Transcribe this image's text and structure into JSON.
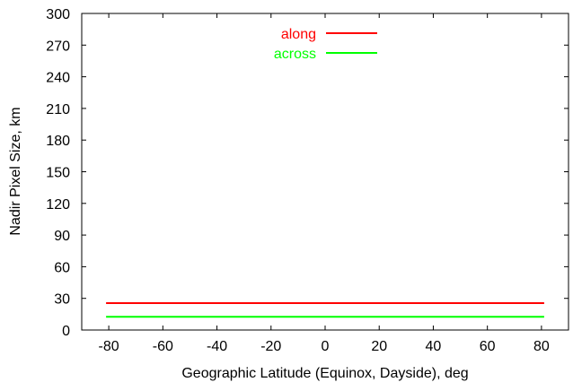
{
  "chart_data": {
    "type": "line",
    "xlabel": "Geographic Latitude (Equinox, Dayside), deg",
    "ylabel": "Nadir Pixel Size, km",
    "xlim": [
      -90,
      90
    ],
    "ylim": [
      0,
      300
    ],
    "xticks": [
      -80,
      -60,
      -40,
      -20,
      0,
      20,
      40,
      60,
      80
    ],
    "yticks": [
      0,
      30,
      60,
      90,
      120,
      150,
      180,
      210,
      240,
      270,
      300
    ],
    "grid": false,
    "legend_position": "top-center",
    "series": [
      {
        "name": "along",
        "color": "#ff0000",
        "x": [
          -81,
          81
        ],
        "y": [
          25.5,
          25.5
        ]
      },
      {
        "name": "across",
        "color": "#00ff00",
        "x": [
          -81,
          81
        ],
        "y": [
          12.5,
          12.5
        ]
      }
    ]
  }
}
